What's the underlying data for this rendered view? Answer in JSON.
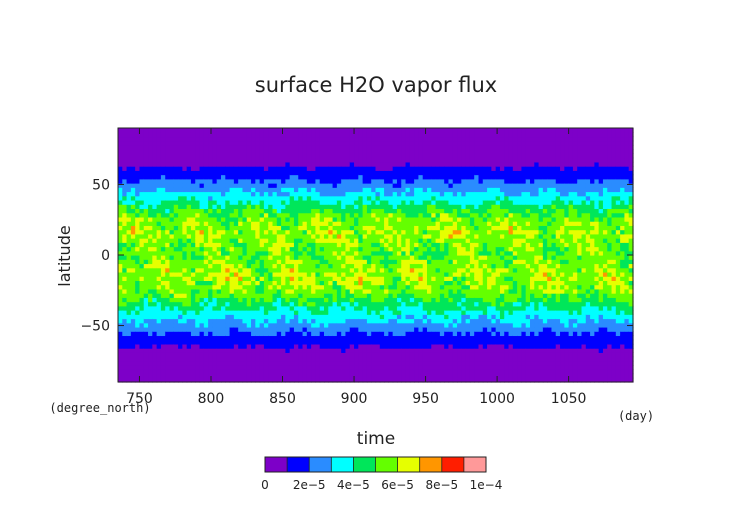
{
  "chart_data": {
    "type": "heatmap",
    "title": "surface H2O vapor flux",
    "xlabel": "time",
    "ylabel": "latitude",
    "x_unit": "(day)",
    "y_unit": "(degree_north)",
    "xlim": [
      735,
      1095
    ],
    "ylim": [
      -90,
      90
    ],
    "x_ticks": [
      {
        "value": 750,
        "label": "750"
      },
      {
        "value": 800,
        "label": "800"
      },
      {
        "value": 850,
        "label": "850"
      },
      {
        "value": 900,
        "label": "900"
      },
      {
        "value": 950,
        "label": "950"
      },
      {
        "value": 1000,
        "label": "1000"
      },
      {
        "value": 1050,
        "label": "1050"
      }
    ],
    "y_ticks": [
      {
        "value": 50,
        "label": "50"
      },
      {
        "value": 0,
        "label": "0"
      },
      {
        "value": -50,
        "label": "−50"
      }
    ],
    "latitude_profile": [
      {
        "lat": -90,
        "value": 2e-06
      },
      {
        "lat": -75,
        "value": 4e-06
      },
      {
        "lat": -65,
        "value": 1e-05
      },
      {
        "lat": -55,
        "value": 2e-05
      },
      {
        "lat": -45,
        "value": 3.2e-05
      },
      {
        "lat": -35,
        "value": 4.4e-05
      },
      {
        "lat": -25,
        "value": 5.6e-05
      },
      {
        "lat": -15,
        "value": 6e-05
      },
      {
        "lat": -5,
        "value": 5.6e-05
      },
      {
        "lat": 0,
        "value": 5.2e-05
      },
      {
        "lat": 5,
        "value": 5.5e-05
      },
      {
        "lat": 15,
        "value": 6e-05
      },
      {
        "lat": 25,
        "value": 5.6e-05
      },
      {
        "lat": 35,
        "value": 4.4e-05
      },
      {
        "lat": 45,
        "value": 3e-05
      },
      {
        "lat": 55,
        "value": 1.8e-05
      },
      {
        "lat": 65,
        "value": 8e-06
      },
      {
        "lat": 75,
        "value": 4e-06
      },
      {
        "lat": 90,
        "value": 2e-06
      }
    ],
    "colorbar": {
      "levels": [
        0,
        1e-05,
        2e-05,
        3e-05,
        4e-05,
        5e-05,
        6e-05,
        7e-05,
        8e-05,
        9e-05,
        0.0001
      ],
      "colors": [
        "#7d00c8",
        "#0000ff",
        "#2a8cff",
        "#00ffff",
        "#00e65a",
        "#64ff00",
        "#e6ff00",
        "#ff9600",
        "#ff1e00",
        "#ff9999"
      ],
      "tick_labels": [
        {
          "level": 0,
          "label": "0"
        },
        {
          "level": 2e-05,
          "label": "2e−5"
        },
        {
          "level": 4e-05,
          "label": "4e−5"
        },
        {
          "level": 6e-05,
          "label": "6e−5"
        },
        {
          "level": 8e-05,
          "label": "8e−5"
        },
        {
          "level": 0.0001,
          "label": "1e−4"
        }
      ]
    },
    "grid": false,
    "legend": "colorbar-bottom"
  }
}
